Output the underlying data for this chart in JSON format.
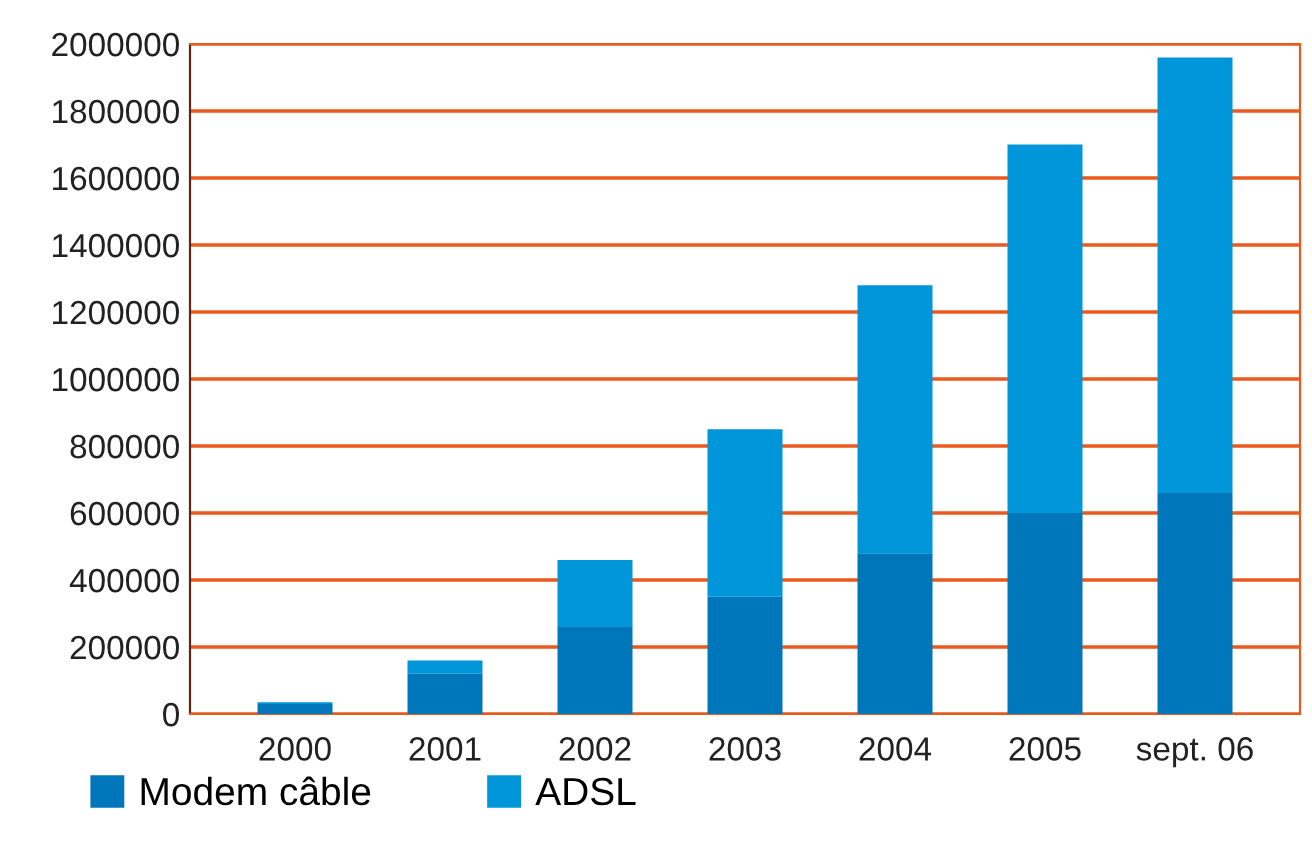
{
  "chart_data": {
    "type": "bar",
    "stacked": true,
    "categories": [
      "2000",
      "2001",
      "2002",
      "2003",
      "2004",
      "2005",
      "sept. 06"
    ],
    "series": [
      {
        "name": "Modem câble",
        "color": "#0077bb",
        "values": [
          30000,
          120000,
          260000,
          350000,
          480000,
          600000,
          660000
        ]
      },
      {
        "name": "ADSL",
        "color": "#0096d9",
        "values": [
          5000,
          40000,
          200000,
          500000,
          800000,
          1100000,
          1300000
        ]
      }
    ],
    "ylim": [
      0,
      2000000
    ],
    "yticks": [
      0,
      200000,
      400000,
      600000,
      800000,
      1000000,
      1200000,
      1400000,
      1600000,
      1800000,
      2000000
    ],
    "grid": "y",
    "legend": "bottom left"
  }
}
